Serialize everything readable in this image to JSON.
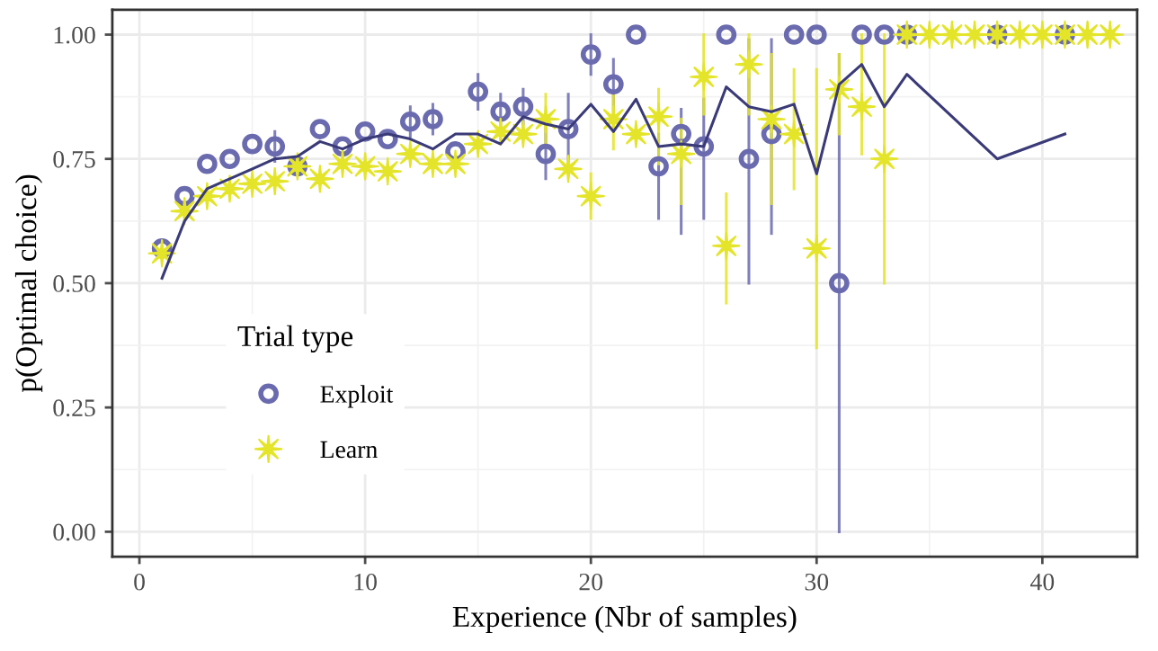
{
  "chart_data": {
    "type": "scatter",
    "xlabel": "Experience (Nbr of samples)",
    "ylabel": "p(Optimal choice)",
    "legend_title": "Trial type",
    "xlim": [
      -1.2,
      44.2
    ],
    "ylim": [
      -0.05,
      1.05
    ],
    "xticks": [
      0,
      10,
      20,
      30,
      40
    ],
    "yticks": [
      {
        "value": 0,
        "label": "0.00"
      },
      {
        "value": 0.25,
        "label": "0.25"
      },
      {
        "value": 0.5,
        "label": "0.50"
      },
      {
        "value": 0.75,
        "label": "0.75"
      },
      {
        "value": 1,
        "label": "1.00"
      }
    ],
    "grid": true,
    "legend": "bottom left",
    "series": [
      {
        "name": "Exploit",
        "marker": "circle",
        "color": "#6a6aaf",
        "x": [
          1,
          2,
          3,
          4,
          5,
          6,
          7,
          8,
          9,
          10,
          11,
          12,
          13,
          14,
          15,
          16,
          17,
          18,
          19,
          20,
          21,
          22,
          23,
          24,
          25,
          26,
          27,
          28,
          29,
          30,
          31,
          32,
          33,
          34,
          38,
          41
        ],
        "values": [
          0.57,
          0.675,
          0.74,
          0.75,
          0.78,
          0.775,
          0.735,
          0.81,
          0.775,
          0.805,
          0.79,
          0.825,
          0.83,
          0.765,
          0.885,
          0.845,
          0.855,
          0.76,
          0.81,
          0.96,
          0.9,
          1.0,
          0.735,
          0.8,
          0.775,
          1.0,
          0.75,
          0.8,
          1.0,
          1.0,
          0.5,
          1.0,
          1.0,
          1.0,
          1.0,
          1.0
        ],
        "errors": [
          null,
          null,
          null,
          null,
          null,
          0.03,
          null,
          null,
          null,
          null,
          null,
          0.03,
          0.03,
          null,
          0.035,
          0.035,
          0.035,
          [
            0.71,
            0.81
          ],
          [
            0.74,
            0.88
          ],
          [
            0.92,
            1.0
          ],
          [
            0.85,
            0.95
          ],
          null,
          [
            0.63,
            0.8
          ],
          [
            0.6,
            0.85
          ],
          [
            0.63,
            0.87
          ],
          null,
          [
            0.5,
            0.99
          ],
          [
            0.6,
            0.99
          ],
          null,
          null,
          [
            0.0,
            0.96
          ],
          null,
          null,
          null,
          null,
          null
        ]
      },
      {
        "name": "Learn",
        "marker": "star",
        "color": "#e4e42a",
        "x": [
          1,
          2,
          3,
          4,
          5,
          6,
          7,
          8,
          9,
          10,
          11,
          12,
          13,
          14,
          15,
          16,
          17,
          18,
          19,
          20,
          21,
          22,
          23,
          24,
          25,
          26,
          27,
          28,
          29,
          30,
          31,
          32,
          33,
          34,
          35,
          36,
          37,
          38,
          39,
          40,
          41,
          42,
          43
        ],
        "values": [
          0.56,
          0.645,
          0.675,
          0.69,
          0.7,
          0.705,
          0.735,
          0.71,
          0.74,
          0.735,
          0.725,
          0.76,
          0.74,
          0.74,
          0.78,
          0.805,
          0.8,
          0.83,
          0.73,
          0.675,
          0.83,
          0.8,
          0.835,
          0.76,
          0.915,
          0.575,
          0.94,
          0.83,
          0.8,
          0.57,
          0.89,
          0.855,
          0.75,
          1.0,
          1.0,
          1.0,
          1.0,
          1.0,
          1.0,
          1.0,
          1.0,
          1.0,
          1.0
        ],
        "errors": [
          null,
          null,
          null,
          null,
          null,
          null,
          null,
          null,
          null,
          null,
          null,
          null,
          null,
          null,
          null,
          null,
          null,
          [
            0.78,
            0.88
          ],
          null,
          [
            0.63,
            0.72
          ],
          [
            0.77,
            0.88
          ],
          null,
          [
            0.74,
            0.89
          ],
          [
            0.66,
            0.83
          ],
          [
            0.84,
            1.0
          ],
          [
            0.46,
            0.68
          ],
          [
            0.84,
            1.0
          ],
          [
            0.66,
            0.96
          ],
          [
            0.69,
            0.93
          ],
          [
            0.37,
            0.93
          ],
          [
            0.8,
            0.96
          ],
          [
            0.76,
            1.0
          ],
          [
            0.5,
            1.0
          ],
          null,
          null,
          null,
          null,
          null,
          null,
          null,
          null,
          null,
          null
        ]
      },
      {
        "type": "line",
        "marker": "none",
        "color": "#3a3a78",
        "x": [
          1,
          2,
          3,
          4,
          5,
          6,
          7,
          8,
          9,
          10,
          11,
          12,
          13,
          14,
          15,
          16,
          17,
          18,
          19,
          20,
          21,
          22,
          23,
          24,
          25,
          26,
          27,
          28,
          29,
          30,
          31,
          32,
          33,
          34,
          38,
          41
        ],
        "values": [
          0.51,
          0.625,
          0.69,
          0.71,
          0.73,
          0.75,
          0.755,
          0.785,
          0.77,
          0.79,
          0.8,
          0.79,
          0.77,
          0.8,
          0.8,
          0.78,
          0.835,
          0.82,
          0.81,
          0.86,
          0.805,
          0.87,
          0.775,
          0.78,
          0.775,
          0.895,
          0.855,
          0.845,
          0.86,
          0.72,
          0.9,
          0.94,
          0.855,
          0.92,
          0.75,
          0.8
        ]
      }
    ]
  }
}
